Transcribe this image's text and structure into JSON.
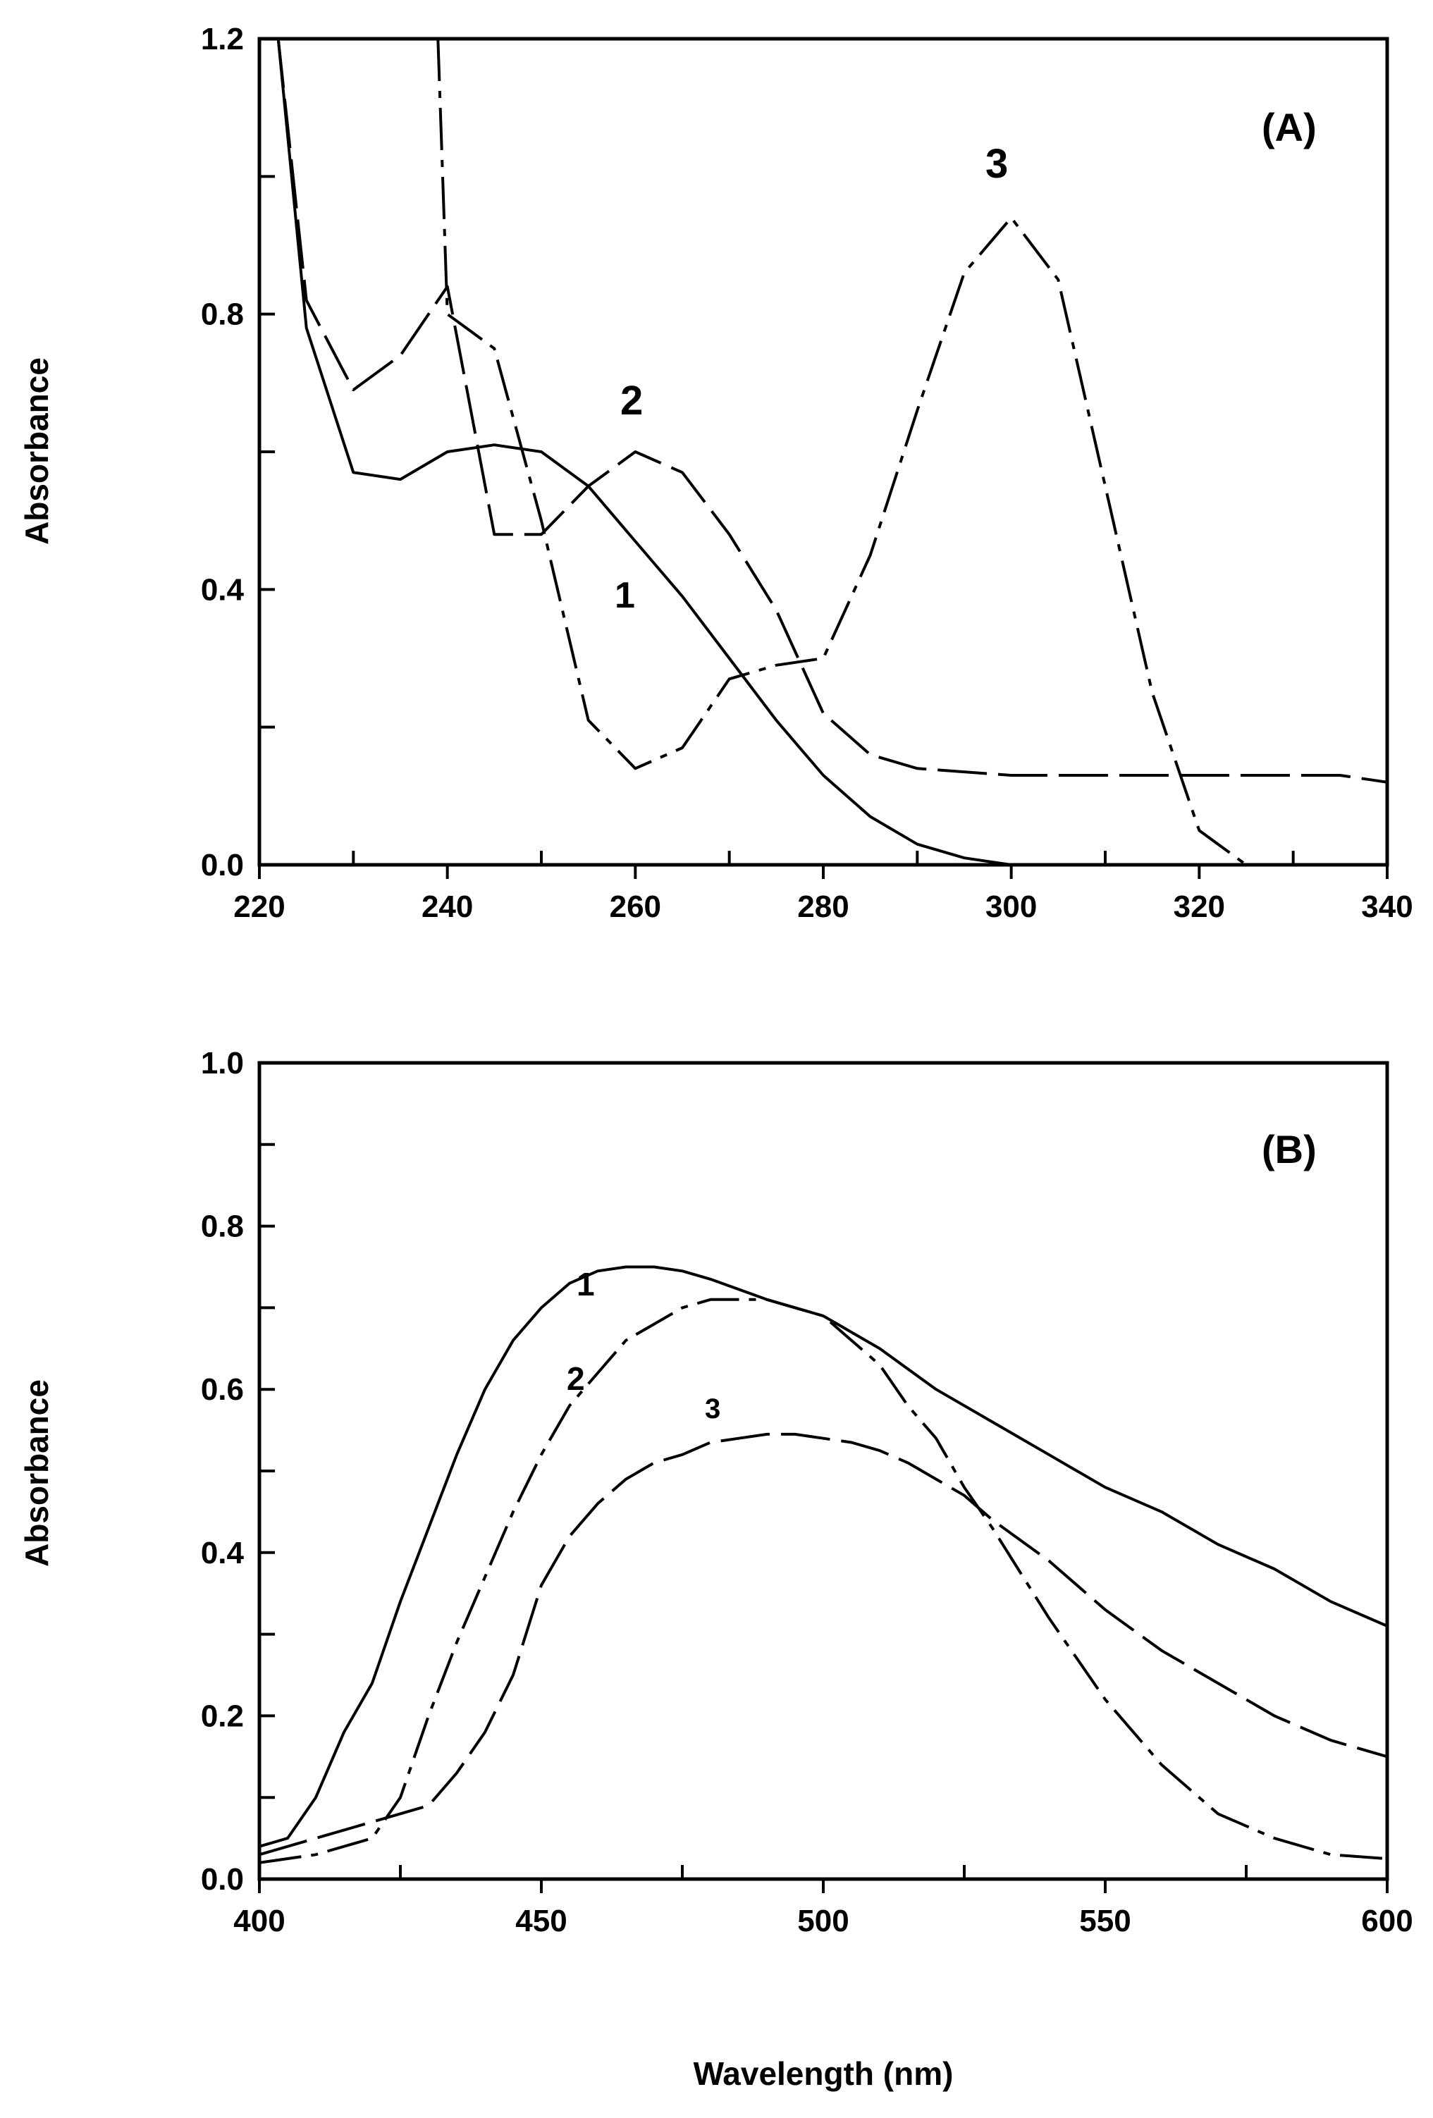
{
  "chart_data": [
    {
      "type": "line",
      "panel_label": "(A)",
      "xlabel": "",
      "ylabel": "Absorbance",
      "xlim": [
        220,
        340
      ],
      "ylim": [
        0.0,
        1.2
      ],
      "x_ticks": [
        "220",
        "240",
        "260",
        "280",
        "300",
        "320",
        "340"
      ],
      "y_ticks": [
        "0.0",
        "0.4",
        "0.8",
        "1.2"
      ],
      "series": [
        {
          "name": "1",
          "style": "solid",
          "x": [
            222,
            225,
            230,
            235,
            240,
            245,
            250,
            255,
            260,
            265,
            270,
            275,
            280,
            285,
            290,
            295,
            300
          ],
          "y": [
            1.2,
            0.78,
            0.57,
            0.56,
            0.6,
            0.61,
            0.6,
            0.55,
            0.47,
            0.39,
            0.3,
            0.21,
            0.13,
            0.07,
            0.03,
            0.01,
            0.0
          ]
        },
        {
          "name": "2",
          "style": "long-dash",
          "x": [
            222,
            225,
            230,
            235,
            240,
            245,
            250,
            255,
            260,
            265,
            270,
            275,
            280,
            285,
            290,
            300,
            310,
            320,
            330,
            335,
            340
          ],
          "y": [
            1.2,
            0.82,
            0.69,
            0.74,
            0.84,
            0.48,
            0.48,
            0.55,
            0.6,
            0.57,
            0.48,
            0.37,
            0.22,
            0.16,
            0.14,
            0.13,
            0.13,
            0.13,
            0.13,
            0.13,
            0.12
          ]
        },
        {
          "name": "3",
          "style": "dash-dot",
          "x": [
            239,
            240,
            245,
            250,
            255,
            260,
            265,
            270,
            275,
            280,
            285,
            290,
            295,
            300,
            305,
            310,
            315,
            320,
            325
          ],
          "y": [
            1.2,
            0.8,
            0.75,
            0.5,
            0.21,
            0.14,
            0.17,
            0.27,
            0.29,
            0.3,
            0.45,
            0.66,
            0.86,
            0.94,
            0.85,
            0.55,
            0.25,
            0.05,
            0.0
          ]
        }
      ],
      "annotations": [
        "1",
        "2",
        "3"
      ]
    },
    {
      "type": "line",
      "panel_label": "(B)",
      "xlabel": "Wavelength (nm)",
      "ylabel": "Absorbance",
      "xlim": [
        400,
        600
      ],
      "ylim": [
        0.0,
        1.0
      ],
      "x_ticks": [
        "400",
        "450",
        "500",
        "550",
        "600"
      ],
      "y_ticks": [
        "0.0",
        "0.2",
        "0.4",
        "0.6",
        "0.8",
        "1.0"
      ],
      "series": [
        {
          "name": "1",
          "style": "solid",
          "x": [
            400,
            405,
            410,
            415,
            420,
            425,
            430,
            435,
            440,
            445,
            450,
            455,
            460,
            465,
            470,
            475,
            480,
            490,
            500,
            510,
            520,
            530,
            540,
            550,
            560,
            570,
            580,
            590,
            600
          ],
          "y": [
            0.04,
            0.05,
            0.1,
            0.18,
            0.24,
            0.34,
            0.43,
            0.52,
            0.6,
            0.66,
            0.7,
            0.73,
            0.745,
            0.75,
            0.75,
            0.745,
            0.735,
            0.71,
            0.69,
            0.65,
            0.6,
            0.56,
            0.52,
            0.48,
            0.45,
            0.41,
            0.38,
            0.34,
            0.31
          ]
        },
        {
          "name": "2",
          "style": "dash-dot",
          "x": [
            400,
            410,
            420,
            425,
            430,
            435,
            440,
            445,
            450,
            455,
            460,
            465,
            470,
            475,
            480,
            485,
            490,
            495,
            500,
            505,
            510,
            515,
            520,
            525,
            530,
            540,
            550,
            560,
            570,
            580,
            590,
            600
          ],
          "y": [
            0.02,
            0.03,
            0.05,
            0.1,
            0.2,
            0.29,
            0.37,
            0.45,
            0.52,
            0.58,
            0.62,
            0.66,
            0.68,
            0.7,
            0.71,
            0.71,
            0.71,
            0.7,
            0.69,
            0.66,
            0.63,
            0.58,
            0.54,
            0.48,
            0.43,
            0.32,
            0.22,
            0.14,
            0.08,
            0.05,
            0.03,
            0.025
          ]
        },
        {
          "name": "3",
          "style": "long-dash",
          "x": [
            400,
            410,
            420,
            430,
            435,
            440,
            445,
            450,
            455,
            460,
            465,
            470,
            475,
            480,
            485,
            490,
            495,
            500,
            505,
            510,
            515,
            520,
            525,
            530,
            540,
            550,
            560,
            570,
            580,
            590,
            600
          ],
          "y": [
            0.03,
            0.05,
            0.07,
            0.09,
            0.13,
            0.18,
            0.25,
            0.36,
            0.42,
            0.46,
            0.49,
            0.51,
            0.52,
            0.535,
            0.54,
            0.545,
            0.545,
            0.54,
            0.535,
            0.525,
            0.51,
            0.49,
            0.47,
            0.44,
            0.39,
            0.33,
            0.28,
            0.24,
            0.2,
            0.17,
            0.15
          ]
        }
      ],
      "annotations": [
        "1",
        "2",
        "3"
      ]
    }
  ]
}
